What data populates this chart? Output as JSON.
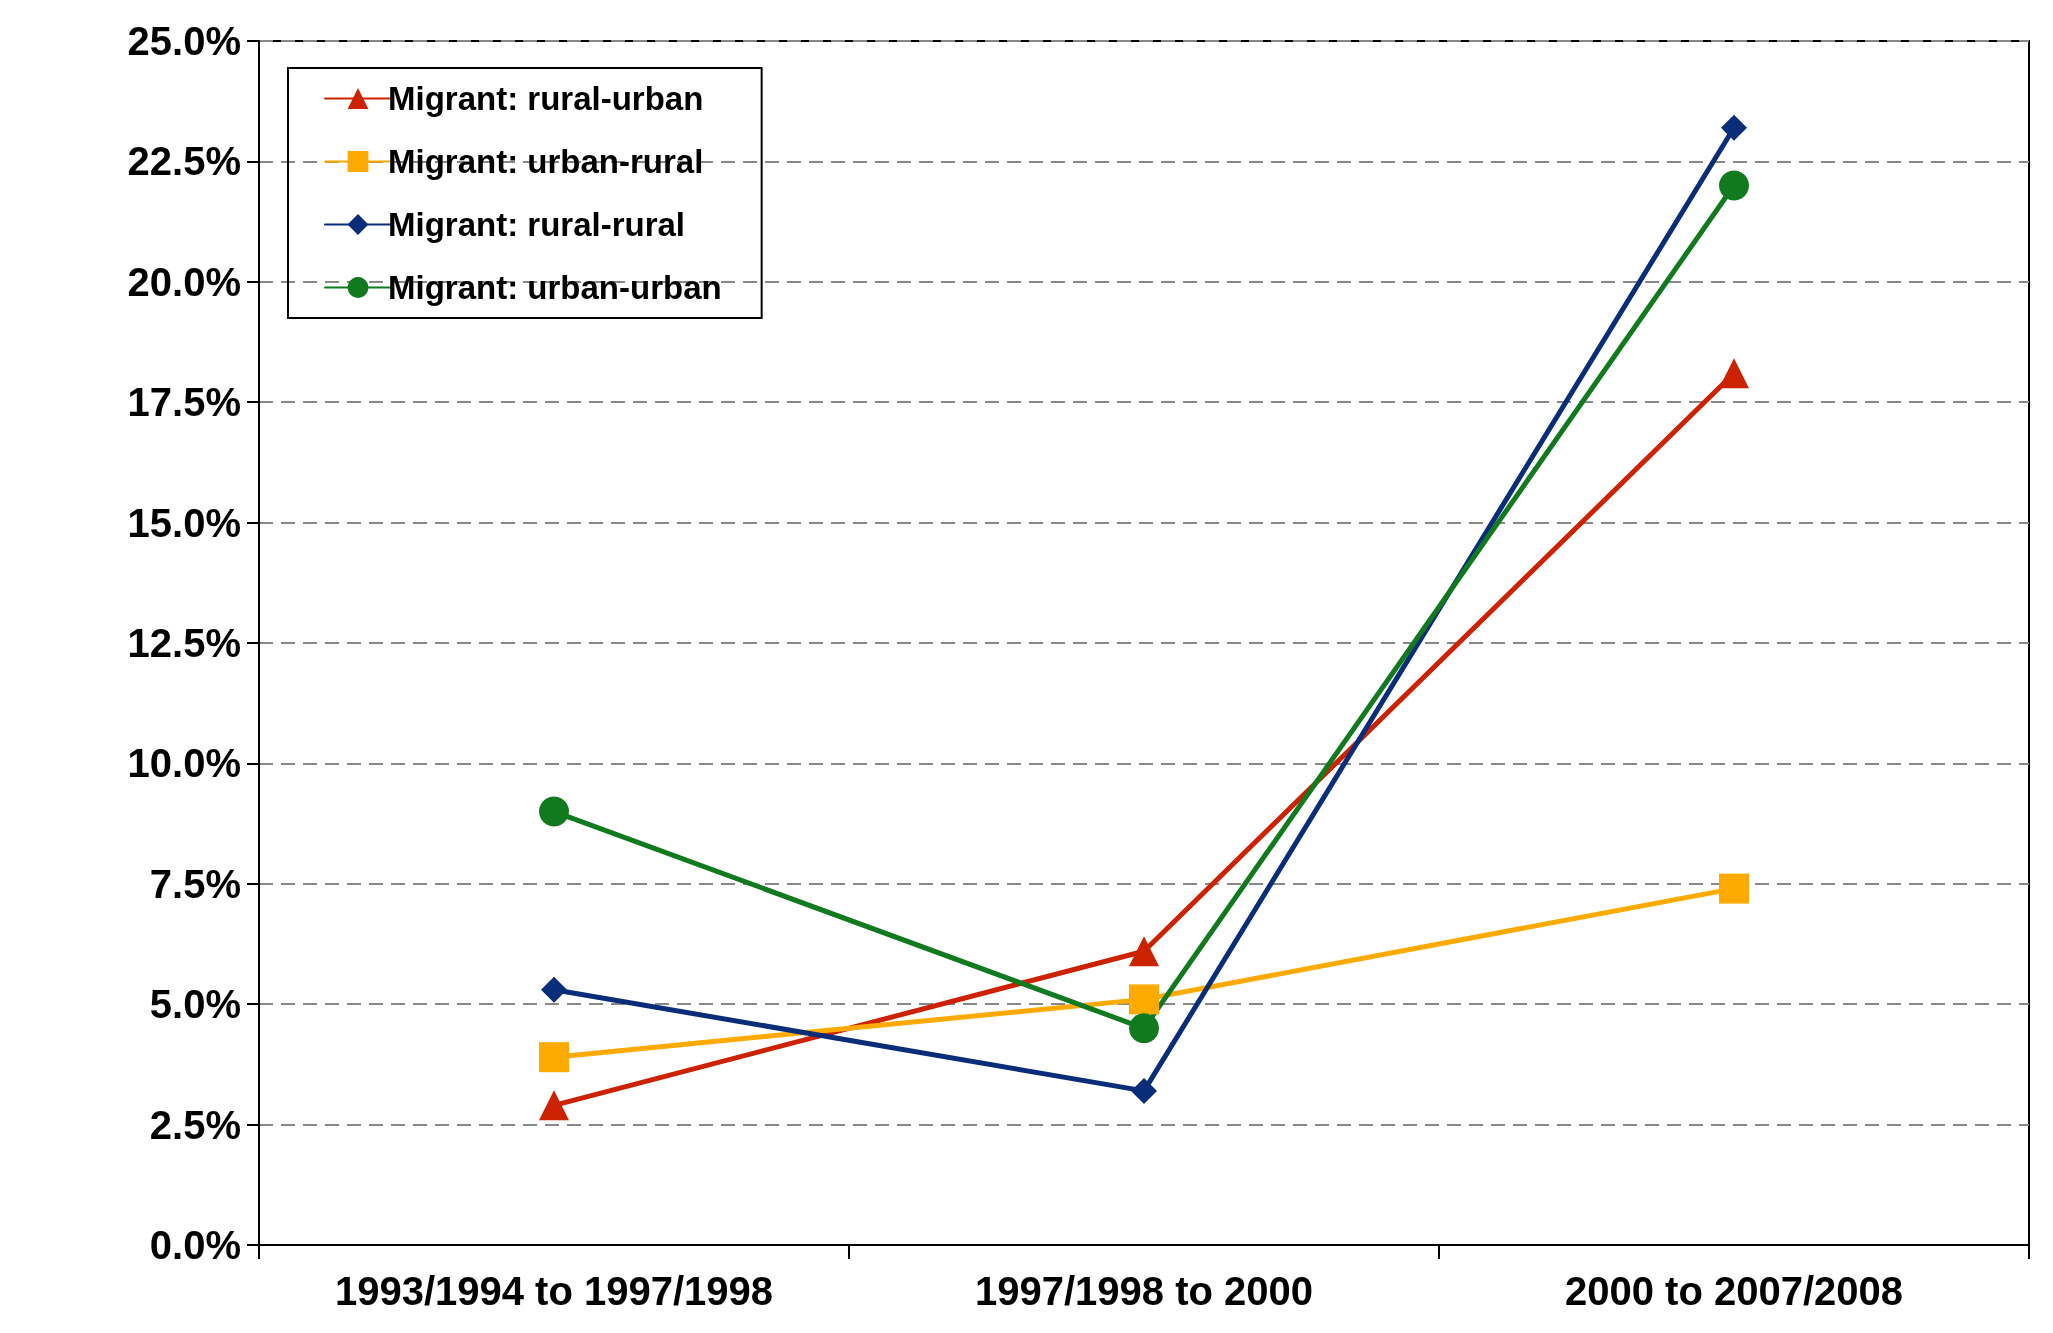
{
  "chart_data": {
    "type": "line",
    "categories": [
      "1993/1994 to 1997/1998",
      "1997/1998 to 2000",
      "2000 to 2007/2008"
    ],
    "series": [
      {
        "name": "Migrant: rural-urban",
        "color": "#cc2200",
        "marker": "triangle",
        "values": [
          2.9,
          6.1,
          18.1
        ]
      },
      {
        "name": "Migrant: urban-rural",
        "color": "#ffaa00",
        "marker": "square",
        "values": [
          3.9,
          5.1,
          7.4
        ]
      },
      {
        "name": "Migrant: rural-rural",
        "color": "#0a2d7a",
        "marker": "diamond",
        "values": [
          5.3,
          3.2,
          23.2
        ]
      },
      {
        "name": "Migrant: urban-urban",
        "color": "#117a1e",
        "marker": "circle",
        "values": [
          9.0,
          4.5,
          22.0
        ]
      }
    ],
    "ylim": [
      0,
      25
    ],
    "yticks": [
      {
        "value": 0,
        "label": "0.0%"
      },
      {
        "value": 2.5,
        "label": "2.5%"
      },
      {
        "value": 5,
        "label": "5.0%"
      },
      {
        "value": 7.5,
        "label": "7.5%"
      },
      {
        "value": 10,
        "label": "10.0%"
      },
      {
        "value": 12.5,
        "label": "12.5%"
      },
      {
        "value": 15,
        "label": "15.0%"
      },
      {
        "value": 17.5,
        "label": "17.5%"
      },
      {
        "value": 20,
        "label": "20.0%"
      },
      {
        "value": 22.5,
        "label": "22.5%"
      },
      {
        "value": 25,
        "label": "25.0%"
      }
    ],
    "grid": "y",
    "legend": "top left",
    "line_style": "solid"
  }
}
